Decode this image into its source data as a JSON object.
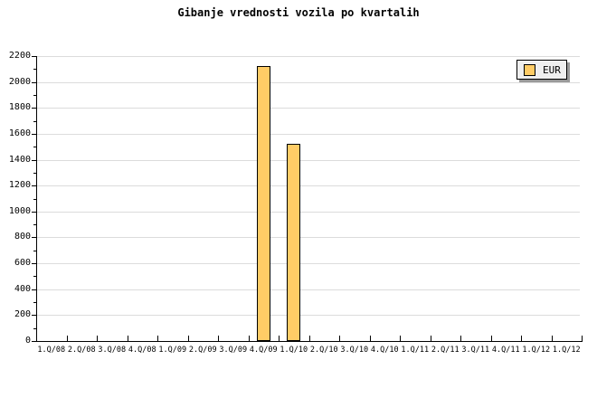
{
  "title": "Gibanje vrednosti vozila po kvartalih",
  "legend": {
    "items": [
      {
        "label": "EUR",
        "color": "#FFCC66"
      }
    ]
  },
  "colors": {
    "background": "#FFFFFF",
    "bar_fill": "#FFCC66",
    "bar_border": "#000000",
    "grid": "#DCDCDC",
    "axis": "#000000",
    "legend_bg": "#EFEFEF",
    "legend_shadow": "#999999",
    "text": "#000000"
  },
  "chart_data": {
    "type": "bar",
    "title": "Gibanje vrednosti vozila po kvartalih",
    "xlabel": "",
    "ylabel": "",
    "categories": [
      "1.Q/08",
      "2.Q/08",
      "3.Q/08",
      "4.Q/08",
      "1.Q/09",
      "2.Q/09",
      "3.Q/09",
      "4.Q/09",
      "1.Q/10",
      "2.Q/10",
      "3.Q/10",
      "4.Q/10",
      "1.Q/11",
      "2.Q/11",
      "3.Q/11",
      "4.Q/11",
      "1.Q/12",
      "1.Q/12"
    ],
    "series": [
      {
        "name": "EUR",
        "values": [
          null,
          null,
          null,
          null,
          null,
          null,
          null,
          2120,
          1520,
          null,
          null,
          null,
          null,
          null,
          null,
          null,
          null,
          null
        ]
      }
    ],
    "ylim": [
      0,
      2200
    ],
    "ytick_major": 200,
    "ytick_minor": 100,
    "grid": true,
    "legend_position": "top-right"
  }
}
